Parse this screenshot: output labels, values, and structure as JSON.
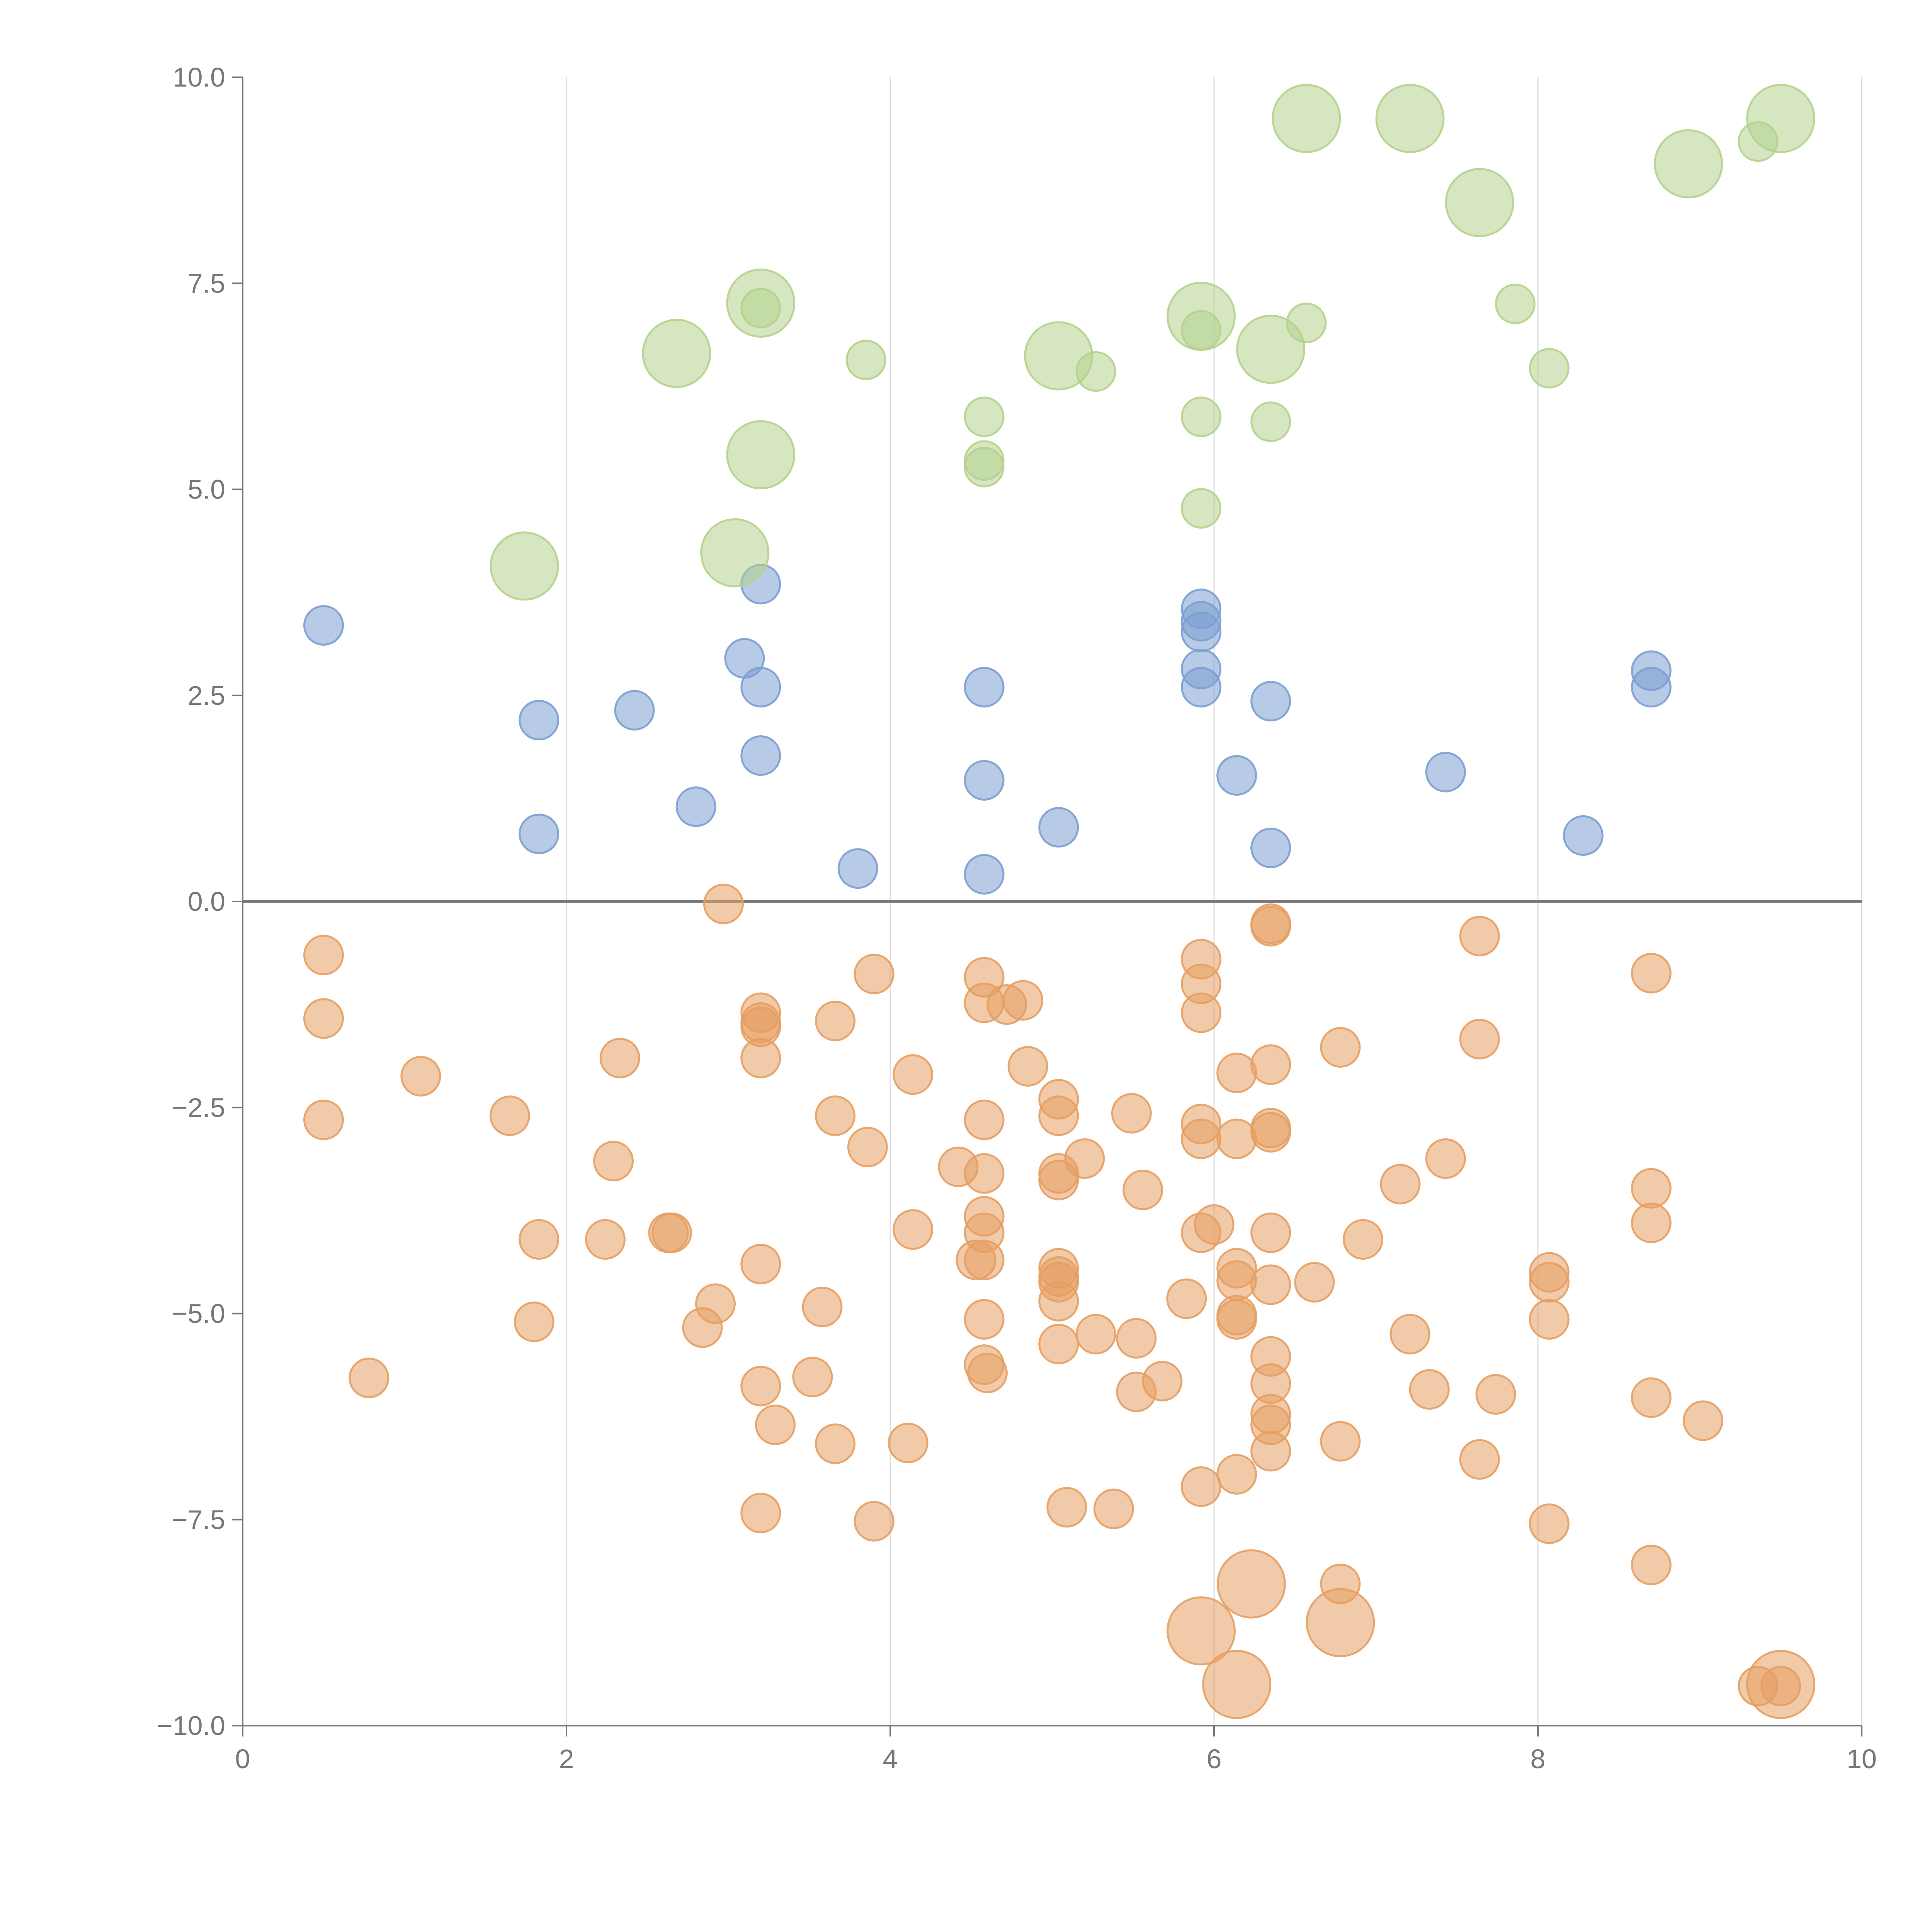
{
  "chart_data": {
    "type": "scatter",
    "title": "",
    "xlabel": "",
    "ylabel": "",
    "xlim": [
      0,
      10
    ],
    "ylim": [
      -10,
      10
    ],
    "x_ticks": [
      0,
      2,
      4,
      6,
      8,
      10
    ],
    "x_tick_labels": [
      "0",
      "2",
      "4",
      "6",
      "8",
      "10"
    ],
    "y_ticks": [
      10,
      7.5,
      5,
      2.5,
      0,
      -2.5,
      -5,
      -7.5,
      -10
    ],
    "y_tick_labels": [
      "10.0",
      "7.5",
      "5.0",
      "2.5",
      "0.0",
      "−2.5",
      "−5.0",
      "−7.5",
      "−10.0"
    ],
    "vertical_gridlines": true,
    "zero_line": true,
    "colors": {
      "blue": "#7b9ed1",
      "orange": "#e59f63",
      "green": "#b5d18c",
      "axis": "#777777",
      "grid": "#dddddd",
      "zero_line": "#777777"
    },
    "series": [
      {
        "name": "blue",
        "color": "#7b9ed1",
        "size": "small",
        "points": [
          [
            0.5,
            3.35
          ],
          [
            1.83,
            2.2
          ],
          [
            1.83,
            0.82
          ],
          [
            2.42,
            2.32
          ],
          [
            2.8,
            1.15
          ],
          [
            3.1,
            2.95
          ],
          [
            3.2,
            3.85
          ],
          [
            3.2,
            2.6
          ],
          [
            3.2,
            1.77
          ],
          [
            3.8,
            0.4
          ],
          [
            4.58,
            2.6
          ],
          [
            4.58,
            1.47
          ],
          [
            4.58,
            0.33
          ],
          [
            5.04,
            0.9
          ],
          [
            5.92,
            3.55
          ],
          [
            5.92,
            3.4
          ],
          [
            5.92,
            3.27
          ],
          [
            5.92,
            2.82
          ],
          [
            5.92,
            2.6
          ],
          [
            6.14,
            1.53
          ],
          [
            6.35,
            2.43
          ],
          [
            6.35,
            0.65
          ],
          [
            7.43,
            1.57
          ],
          [
            8.28,
            0.8
          ],
          [
            8.7,
            2.8
          ],
          [
            8.7,
            2.6
          ]
        ]
      },
      {
        "name": "green",
        "color": "#b5d18c",
        "size_mixed": true,
        "points": [
          [
            3.2,
            7.2,
            "s"
          ],
          [
            3.85,
            6.57,
            "s"
          ],
          [
            4.58,
            5.88,
            "s"
          ],
          [
            4.58,
            5.35,
            "s"
          ],
          [
            4.58,
            5.27,
            "s"
          ],
          [
            5.27,
            6.43,
            "s"
          ],
          [
            5.92,
            6.93,
            "s"
          ],
          [
            5.92,
            5.88,
            "s"
          ],
          [
            5.92,
            4.77,
            "s"
          ],
          [
            6.35,
            5.82,
            "s"
          ],
          [
            6.57,
            7.02,
            "s"
          ],
          [
            7.86,
            7.25,
            "s"
          ],
          [
            8.07,
            6.47,
            "s"
          ],
          [
            9.36,
            9.22,
            "s"
          ],
          [
            1.74,
            4.07,
            "l"
          ],
          [
            2.68,
            6.65,
            "l"
          ],
          [
            3.04,
            4.23,
            "l"
          ],
          [
            3.2,
            7.26,
            "l"
          ],
          [
            3.2,
            5.42,
            "l"
          ],
          [
            5.04,
            6.62,
            "l"
          ],
          [
            5.92,
            7.1,
            "l"
          ],
          [
            6.35,
            6.7,
            "l"
          ],
          [
            6.57,
            9.5,
            "l"
          ],
          [
            7.21,
            9.5,
            "l"
          ],
          [
            7.64,
            8.48,
            "l"
          ],
          [
            8.93,
            8.95,
            "l"
          ],
          [
            9.5,
            9.5,
            "l"
          ]
        ]
      },
      {
        "name": "orange",
        "color": "#e59f63",
        "size_mixed": true,
        "points": [
          [
            2.97,
            -0.03,
            "s"
          ],
          [
            0.5,
            -0.65,
            "s"
          ],
          [
            0.5,
            -1.42,
            "s"
          ],
          [
            0.5,
            -2.65,
            "s"
          ],
          [
            0.78,
            -5.78,
            "s"
          ],
          [
            1.1,
            -2.12,
            "s"
          ],
          [
            1.65,
            -2.6,
            "s"
          ],
          [
            1.83,
            -4.1,
            "s"
          ],
          [
            1.8,
            -5.1,
            "s"
          ],
          [
            2.24,
            -4.1,
            "s"
          ],
          [
            2.29,
            -3.15,
            "s"
          ],
          [
            2.33,
            -1.9,
            "s"
          ],
          [
            2.63,
            -4.02,
            "s"
          ],
          [
            2.65,
            -4.02,
            "s"
          ],
          [
            2.84,
            -5.17,
            "s"
          ],
          [
            2.92,
            -4.88,
            "s"
          ],
          [
            3.2,
            -1.35,
            "s"
          ],
          [
            3.2,
            -1.47,
            "s"
          ],
          [
            3.2,
            -1.52,
            "s"
          ],
          [
            3.2,
            -1.9,
            "s"
          ],
          [
            3.2,
            -4.4,
            "s"
          ],
          [
            3.2,
            -5.88,
            "s"
          ],
          [
            3.2,
            -7.42,
            "s"
          ],
          [
            3.29,
            -6.35,
            "s"
          ],
          [
            3.52,
            -5.77,
            "s"
          ],
          [
            3.58,
            -4.92,
            "s"
          ],
          [
            3.66,
            -1.45,
            "s"
          ],
          [
            3.66,
            -2.6,
            "s"
          ],
          [
            3.66,
            -6.58,
            "s"
          ],
          [
            3.86,
            -2.98,
            "s"
          ],
          [
            3.9,
            -0.88,
            "s"
          ],
          [
            3.9,
            -7.52,
            "s"
          ],
          [
            4.11,
            -6.57,
            "s"
          ],
          [
            4.14,
            -2.1,
            "s"
          ],
          [
            4.14,
            -3.98,
            "s"
          ],
          [
            4.42,
            -3.22,
            "s"
          ],
          [
            4.53,
            -4.35,
            "s"
          ],
          [
            4.58,
            -0.92,
            "s"
          ],
          [
            4.58,
            -1.23,
            "s"
          ],
          [
            4.58,
            -2.65,
            "s"
          ],
          [
            4.58,
            -3.3,
            "s"
          ],
          [
            4.58,
            -3.82,
            "s"
          ],
          [
            4.58,
            -4.02,
            "s"
          ],
          [
            4.58,
            -4.35,
            "s"
          ],
          [
            4.58,
            -5.07,
            "s"
          ],
          [
            4.58,
            -5.62,
            "s"
          ],
          [
            4.6,
            -5.72,
            "s"
          ],
          [
            4.72,
            -1.25,
            "s"
          ],
          [
            4.82,
            -1.2,
            "s"
          ],
          [
            4.85,
            -2.0,
            "s"
          ],
          [
            5.04,
            -2.4,
            "s"
          ],
          [
            5.04,
            -2.6,
            "s"
          ],
          [
            5.04,
            -3.3,
            "s"
          ],
          [
            5.04,
            -3.38,
            "s"
          ],
          [
            5.04,
            -4.45,
            "s"
          ],
          [
            5.04,
            -4.55,
            "s"
          ],
          [
            5.04,
            -4.62,
            "s"
          ],
          [
            5.04,
            -4.85,
            "s"
          ],
          [
            5.04,
            -5.37,
            "s"
          ],
          [
            5.09,
            -7.35,
            "s"
          ],
          [
            5.2,
            -3.12,
            "s"
          ],
          [
            5.27,
            -5.25,
            "s"
          ],
          [
            5.38,
            -7.37,
            "s"
          ],
          [
            5.49,
            -2.57,
            "s"
          ],
          [
            5.52,
            -5.3,
            "s"
          ],
          [
            5.52,
            -5.95,
            "s"
          ],
          [
            5.56,
            -3.5,
            "s"
          ],
          [
            5.68,
            -5.82,
            "s"
          ],
          [
            5.83,
            -4.82,
            "s"
          ],
          [
            5.92,
            -0.7,
            "s"
          ],
          [
            5.92,
            -1.0,
            "s"
          ],
          [
            5.92,
            -1.35,
            "s"
          ],
          [
            5.92,
            -2.7,
            "s"
          ],
          [
            5.92,
            -2.88,
            "s"
          ],
          [
            5.92,
            -4.02,
            "s"
          ],
          [
            5.92,
            -7.1,
            "s"
          ],
          [
            6.0,
            -3.92,
            "s"
          ],
          [
            6.14,
            -2.08,
            "s"
          ],
          [
            6.14,
            -2.88,
            "s"
          ],
          [
            6.14,
            -4.45,
            "s"
          ],
          [
            6.14,
            -4.6,
            "s"
          ],
          [
            6.14,
            -5.02,
            "s"
          ],
          [
            6.14,
            -5.07,
            "s"
          ],
          [
            6.14,
            -6.95,
            "s"
          ],
          [
            6.35,
            -0.27,
            "s"
          ],
          [
            6.35,
            -0.3,
            "s"
          ],
          [
            6.35,
            -1.98,
            "s"
          ],
          [
            6.35,
            -2.75,
            "s"
          ],
          [
            6.35,
            -2.8,
            "s"
          ],
          [
            6.35,
            -4.02,
            "s"
          ],
          [
            6.35,
            -4.65,
            "s"
          ],
          [
            6.35,
            -5.52,
            "s"
          ],
          [
            6.35,
            -5.85,
            "s"
          ],
          [
            6.35,
            -6.22,
            "s"
          ],
          [
            6.35,
            -6.35,
            "s"
          ],
          [
            6.35,
            -6.67,
            "s"
          ],
          [
            6.62,
            -4.62,
            "s"
          ],
          [
            6.78,
            -1.77,
            "s"
          ],
          [
            6.78,
            -6.55,
            "s"
          ],
          [
            6.78,
            -8.28,
            "s"
          ],
          [
            6.92,
            -4.1,
            "s"
          ],
          [
            7.15,
            -3.43,
            "s"
          ],
          [
            7.21,
            -5.25,
            "s"
          ],
          [
            7.33,
            -5.92,
            "s"
          ],
          [
            7.43,
            -3.12,
            "s"
          ],
          [
            7.64,
            -0.42,
            "s"
          ],
          [
            7.64,
            -1.67,
            "s"
          ],
          [
            7.64,
            -6.77,
            "s"
          ],
          [
            7.74,
            -5.98,
            "s"
          ],
          [
            8.07,
            -4.5,
            "s"
          ],
          [
            8.07,
            -4.62,
            "s"
          ],
          [
            8.07,
            -5.07,
            "s"
          ],
          [
            8.07,
            -7.55,
            "s"
          ],
          [
            8.7,
            -0.87,
            "s"
          ],
          [
            8.7,
            -3.48,
            "s"
          ],
          [
            8.7,
            -3.9,
            "s"
          ],
          [
            8.7,
            -6.02,
            "s"
          ],
          [
            8.7,
            -8.05,
            "s"
          ],
          [
            9.02,
            -6.3,
            "s"
          ],
          [
            9.36,
            -9.52,
            "s"
          ],
          [
            9.5,
            -9.52,
            "s"
          ],
          [
            5.92,
            -8.85,
            "l"
          ],
          [
            6.14,
            -9.5,
            "l"
          ],
          [
            6.23,
            -8.28,
            "l"
          ],
          [
            6.78,
            -8.75,
            "l"
          ],
          [
            9.5,
            -9.5,
            "l"
          ]
        ]
      }
    ]
  }
}
